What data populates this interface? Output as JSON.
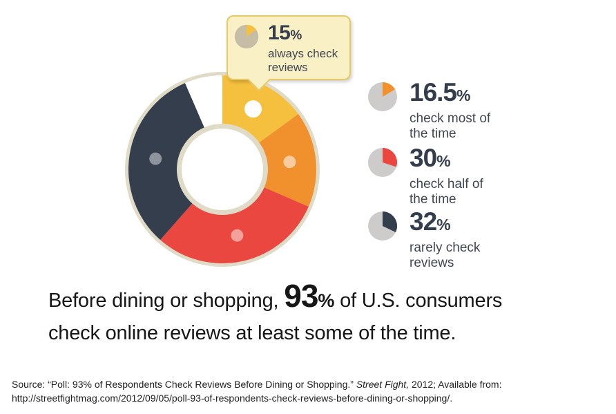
{
  "colors": {
    "yellow": "#F5C03E",
    "orange": "#F0912D",
    "red": "#E9473F",
    "dark_navy": "#353E4D",
    "ring_cream": "#DFDBC7",
    "hole_white": "#FFFFFF",
    "callout_bg": "#FAF0C5",
    "callout_border": "#E5C964",
    "legend_icon_gray": "#CDCCCA",
    "callout_icon_gray": "#C6BDA7",
    "number_text": "#343D4B",
    "label_text": "#3F4652"
  },
  "chart_data": {
    "type": "pie",
    "donut": true,
    "start_angle_deg": 0,
    "direction": "clockwise",
    "title": "Before dining or shopping, 93% of U.S. consumers check online reviews at least some of the time.",
    "unit": "%",
    "segments": [
      {
        "label": "always check reviews",
        "value": 15,
        "color": "#F5C03E",
        "dot_color": "#FFFFFF"
      },
      {
        "label": "check most of the time",
        "value": 16.5,
        "color": "#F0912D",
        "dot_color": "#F8CC9E"
      },
      {
        "label": "check half of the time",
        "value": 30,
        "color": "#E9473F",
        "dot_color": "#F2A19B"
      },
      {
        "label": "rarely check reviews",
        "value": 32,
        "color": "#353E4D",
        "dot_color": "#8E939C"
      },
      {
        "label": "",
        "value": 6.5,
        "color": "#FFFFFF",
        "dot_color": null
      }
    ]
  },
  "callout": {
    "pct": "15",
    "pct_symbol": "%",
    "label_lines": [
      "always check",
      "reviews"
    ],
    "icon": {
      "value": 15,
      "color": "#F5C03E",
      "gray": "#C6BDA7"
    }
  },
  "legend": [
    {
      "pct": "16.5",
      "pct_symbol": "%",
      "label_lines": [
        "check most of",
        "the time"
      ],
      "icon": {
        "value": 16.5,
        "color": "#F0912D",
        "gray": "#CDCCCA"
      }
    },
    {
      "pct": "30",
      "pct_symbol": "%",
      "label_lines": [
        "check half of",
        "the time"
      ],
      "icon": {
        "value": 30,
        "color": "#E9473F",
        "gray": "#CDCCCA"
      }
    },
    {
      "pct": "32",
      "pct_symbol": "%",
      "label_lines": [
        "rarely check",
        "reviews"
      ],
      "icon": {
        "value": 32,
        "color": "#353E4D",
        "gray": "#CDCCCA"
      }
    }
  ],
  "headline": {
    "prefix": "Before dining or shopping, ",
    "big_number": "93",
    "percent": "%",
    "suffix": " of U.S. consumers check online reviews at least some of the time."
  },
  "source": {
    "prefix": "Source: “Poll: 93% of Respondents Check Reviews Before Dining or Shopping.” ",
    "italic": "Street Fight,",
    "suffix": " 2012; Available from:",
    "url_line": "http://streetfightmag.com/2012/09/05/poll-93-of-respondents-check-reviews-before-dining-or-shopping/."
  }
}
